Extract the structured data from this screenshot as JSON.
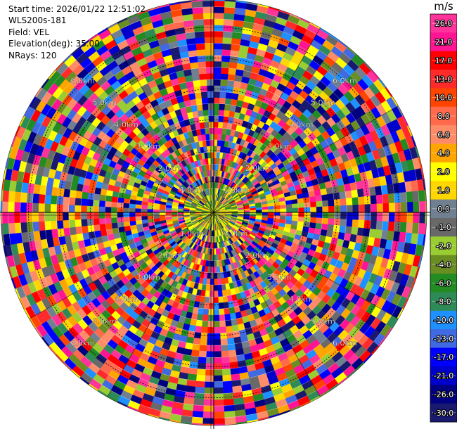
{
  "header": {
    "start_time": "Start time: 2026/01/22 12:51:02",
    "instrument": "WLS200s-181",
    "field": "Field: VEL",
    "elevation": "Elevation(deg): 35.00",
    "nrays": "NRays: 120"
  },
  "colorbar": {
    "unit": "m/s",
    "levels": [
      {
        "label": "26.0",
        "color": "#ff3399"
      },
      {
        "label": "21.0",
        "color": "#ff1493"
      },
      {
        "label": "17.0",
        "color": "#ff0000"
      },
      {
        "label": "13.0",
        "color": "#ff2b2b"
      },
      {
        "label": "10.0",
        "color": "#ff4500"
      },
      {
        "label": "8.0",
        "color": "#ff6a4d"
      },
      {
        "label": "6.0",
        "color": "#ff8c69"
      },
      {
        "label": "4.0",
        "color": "#ffa500"
      },
      {
        "label": "2.0",
        "color": "#ffff00"
      },
      {
        "label": "1.0",
        "color": "#ffd700"
      },
      {
        "label": "0.0",
        "color": "#708090"
      },
      {
        "label": "-1.0",
        "color": "#696969"
      },
      {
        "label": "-2.0",
        "color": "#9acd32"
      },
      {
        "label": "-4.0",
        "color": "#6b8e23"
      },
      {
        "label": "-6.0",
        "color": "#228b22"
      },
      {
        "label": "-8.0",
        "color": "#2e8b57"
      },
      {
        "label": "-10.0",
        "color": "#1e90ff"
      },
      {
        "label": "-13.0",
        "color": "#4169e1"
      },
      {
        "label": "-17.0",
        "color": "#0000ff"
      },
      {
        "label": "-21.0",
        "color": "#0000cd"
      },
      {
        "label": "-26.0",
        "color": "#000080"
      },
      {
        "label": "-30.0",
        "color": "#191970"
      }
    ]
  },
  "chart_data": {
    "type": "heatmap",
    "projection": "polar PPI",
    "field": "VEL",
    "units": "m/s",
    "elevation_deg": 35.0,
    "n_rays": 120,
    "range_rings_km": [
      1.0,
      2.0,
      3.0,
      4.0,
      5.0,
      6.0
    ],
    "range_labels": [
      "1.0km",
      "2.0km",
      "3.0km",
      "4.0km",
      "5.0km",
      "6.0km"
    ],
    "max_range_km": 6.9,
    "color_min": -30.0,
    "color_max": 26.0
  }
}
